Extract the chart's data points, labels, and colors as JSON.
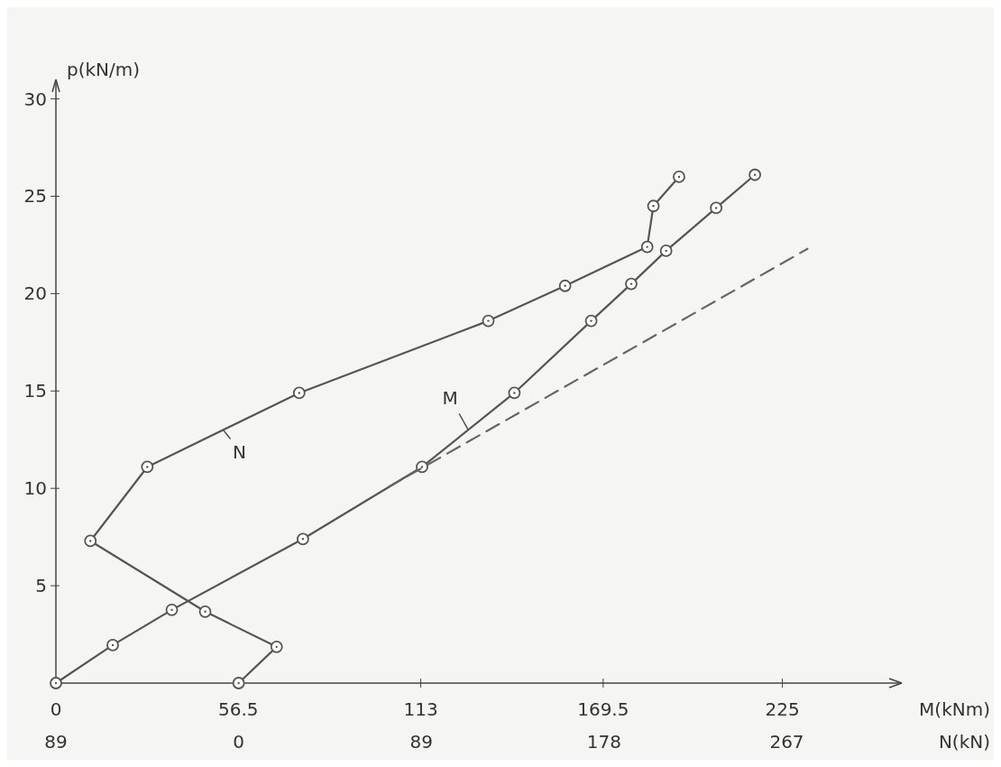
{
  "chart_data": {
    "type": "line",
    "ylabel": "p(kN/m)",
    "xlabel": "M(kNm)",
    "x2label": "N(kN)",
    "xlim": [
      0,
      262
    ],
    "xticks": [
      0,
      56.5,
      113,
      169.5,
      225
    ],
    "x2lim": [
      -89,
      323
    ],
    "x2ticks": [
      {
        "value": -89,
        "label": "89"
      },
      0,
      89,
      178,
      267
    ],
    "ylim": [
      0,
      31
    ],
    "yticks": [
      5,
      10,
      15,
      20,
      25,
      30
    ],
    "marker": "circle",
    "grid": false,
    "series": [
      {
        "name": "M",
        "color": "#555555",
        "x": [
          0,
          17.6,
          35.9,
          76.5,
          113.4,
          142,
          165.8,
          178.2,
          189,
          204.5,
          216.5
        ],
        "values": [
          0,
          1.95,
          3.76,
          7.4,
          11.1,
          14.9,
          18.6,
          20.5,
          22.2,
          24.4,
          26.1
        ]
      },
      {
        "name": "N",
        "color": "#555555",
        "axis": "x2",
        "x": [
          0,
          18.5,
          -16.3,
          -72.2,
          -44.5,
          29.5,
          121.6,
          159,
          199,
          202,
          214.5
        ],
        "values": [
          0,
          1.86,
          3.67,
          7.3,
          11.1,
          14.9,
          18.6,
          20.4,
          22.4,
          24.5,
          26
        ]
      },
      {
        "color": "#666666",
        "line_style": "dashed",
        "marker": "none",
        "x": [
          103,
          232.8
        ],
        "values": [
          10.07,
          22.3
        ]
      }
    ]
  }
}
